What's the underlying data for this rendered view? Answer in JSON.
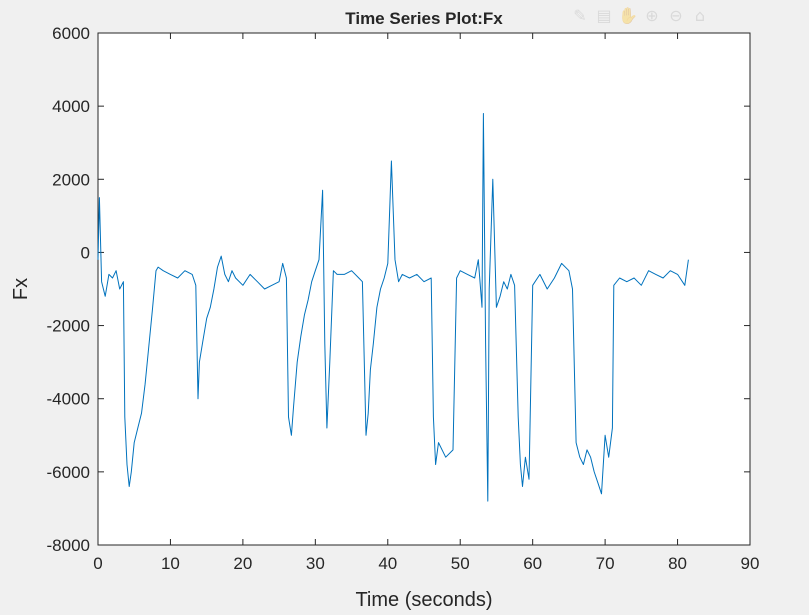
{
  "toolbar": {
    "icons": [
      "brush-icon",
      "save-icon",
      "pan-hand-icon",
      "zoom-in-icon",
      "zoom-out-icon",
      "home-icon"
    ]
  },
  "colors": {
    "line": "#0072bd",
    "axes": "#262626",
    "background": "#f0f0f0",
    "plot_bg": "#ffffff"
  },
  "chart_data": {
    "type": "line",
    "title": "Time Series Plot:Fx",
    "xlabel": "Time (seconds)",
    "ylabel": "Fx",
    "xlim": [
      0,
      90
    ],
    "ylim": [
      -8000,
      6000
    ],
    "xticks": [
      0,
      10,
      20,
      30,
      40,
      50,
      60,
      70,
      80,
      90
    ],
    "yticks": [
      -8000,
      -6000,
      -4000,
      -2000,
      0,
      2000,
      4000,
      6000
    ],
    "grid": false,
    "series": [
      {
        "x": [
          0,
          0.2,
          0.5,
          1,
          1.5,
          2,
          2.5,
          3,
          3.5,
          3.7,
          4,
          4.3,
          4.6,
          5,
          5.5,
          6,
          6.5,
          7,
          7.5,
          8,
          8.3,
          9,
          10,
          11,
          12,
          13,
          13.5,
          13.8,
          14,
          14.5,
          15,
          15.5,
          16,
          16.5,
          17,
          17.5,
          18,
          18.5,
          19,
          20,
          21,
          22,
          23,
          24,
          25,
          25.5,
          26,
          26.3,
          26.7,
          27,
          27.5,
          28,
          28.5,
          29,
          29.5,
          30,
          30.5,
          31,
          31.3,
          31.6,
          32,
          32.5,
          33,
          34,
          35,
          36,
          36.5,
          37,
          37.3,
          37.6,
          38,
          38.5,
          39,
          39.5,
          40,
          40.5,
          41,
          41.5,
          42,
          43,
          44,
          45,
          46,
          46.3,
          46.6,
          47,
          48,
          49,
          49.5,
          50,
          51,
          52,
          52.5,
          53,
          53.2,
          53.5,
          53.8,
          54,
          54.5,
          55,
          55.5,
          56,
          56.5,
          57,
          57.5,
          58,
          58.3,
          58.6,
          59,
          59.5,
          60,
          61,
          62,
          63,
          64,
          65,
          65.5,
          66,
          66.5,
          67,
          67.5,
          68,
          68.5,
          69,
          69.5,
          70,
          70.5,
          71,
          71.2,
          72,
          73,
          74,
          75,
          76,
          77,
          78,
          79,
          80,
          81,
          81.5
        ],
        "y": [
          -200,
          1500,
          -800,
          -1200,
          -600,
          -700,
          -500,
          -1000,
          -800,
          -4500,
          -5800,
          -6400,
          -6000,
          -5200,
          -4800,
          -4400,
          -3600,
          -2600,
          -1600,
          -500,
          -400,
          -500,
          -600,
          -700,
          -500,
          -600,
          -900,
          -4000,
          -3000,
          -2400,
          -1800,
          -1500,
          -1000,
          -400,
          -100,
          -600,
          -800,
          -500,
          -700,
          -900,
          -600,
          -800,
          -1000,
          -900,
          -800,
          -300,
          -700,
          -4500,
          -5000,
          -4200,
          -3000,
          -2300,
          -1700,
          -1300,
          -800,
          -500,
          -200,
          1700,
          -2500,
          -4800,
          -3000,
          -500,
          -600,
          -600,
          -500,
          -700,
          -800,
          -5000,
          -4400,
          -3200,
          -2500,
          -1500,
          -1000,
          -700,
          -300,
          2500,
          -200,
          -800,
          -600,
          -700,
          -600,
          -800,
          -700,
          -4500,
          -5800,
          -5200,
          -5600,
          -5400,
          -700,
          -500,
          -600,
          -700,
          -200,
          -1500,
          3800,
          -2500,
          -6800,
          -1000,
          2000,
          -1500,
          -1200,
          -800,
          -1000,
          -600,
          -900,
          -4500,
          -5800,
          -6400,
          -5600,
          -6200,
          -900,
          -600,
          -1000,
          -700,
          -300,
          -500,
          -1000,
          -5200,
          -5600,
          -5800,
          -5400,
          -5600,
          -6000,
          -6300,
          -6600,
          -5000,
          -5600,
          -4800,
          -900,
          -700,
          -800,
          -700,
          -900,
          -500,
          -600,
          -700,
          -500,
          -600,
          -900,
          -200
        ]
      }
    ]
  }
}
